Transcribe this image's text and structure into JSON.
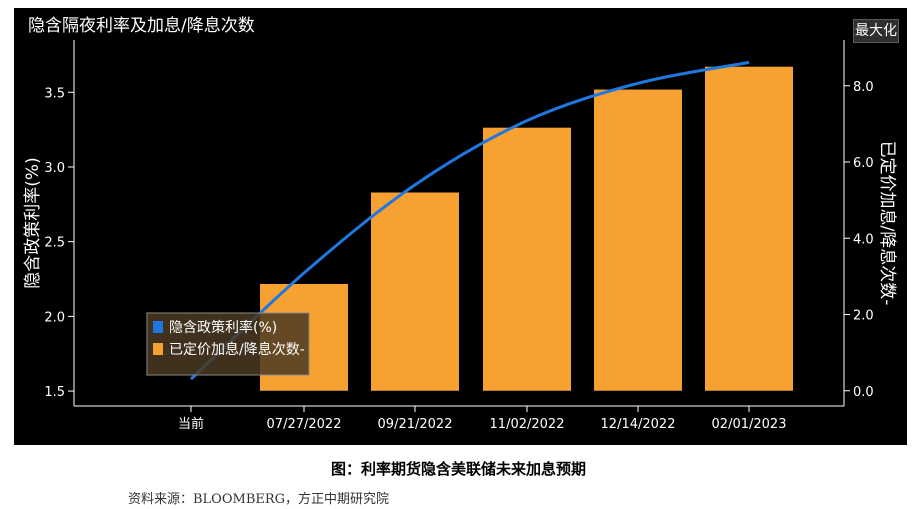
{
  "header": {
    "title": "隐含隔夜利率及加息/降息次数",
    "maximize_label": "最大化"
  },
  "caption": "图：利率期货隐含美联储未来加息预期",
  "source": "资料来源：BLOOMBERG，方正中期研究院",
  "chart_data": {
    "type": "bar",
    "categories": [
      "当前",
      "07/27/2022",
      "09/21/2022",
      "11/02/2022",
      "12/14/2022",
      "02/01/2023"
    ],
    "ylabel_left": "隐含政策利率(%)",
    "ylabel_right": "已定价加息/降息次数-",
    "left_axis": {
      "ylim": [
        1.4,
        3.85
      ],
      "ticks": [
        "1.5",
        "2.0",
        "2.5",
        "3.0",
        "3.5"
      ]
    },
    "right_axis": {
      "ylim": [
        -0.4,
        9.2
      ],
      "ticks": [
        "0.0",
        "2.0",
        "4.0",
        "6.0",
        "8.0"
      ]
    },
    "series": [
      {
        "name": "隐含政策利率(%)",
        "type": "line",
        "axis": "left",
        "color": "#1f78e0",
        "values": [
          1.58,
          2.29,
          2.88,
          3.31,
          3.56,
          3.7
        ]
      },
      {
        "name": "已定价加息/降息次数-",
        "type": "bar",
        "axis": "right",
        "color": "#f6a132",
        "values": [
          0,
          2.8,
          5.2,
          6.9,
          7.9,
          8.5
        ]
      }
    ],
    "legend": {
      "position": "bottom-left",
      "entries": [
        "隐含政策利率(%)",
        "已定价加息/降息次数-"
      ]
    },
    "grid": false
  }
}
